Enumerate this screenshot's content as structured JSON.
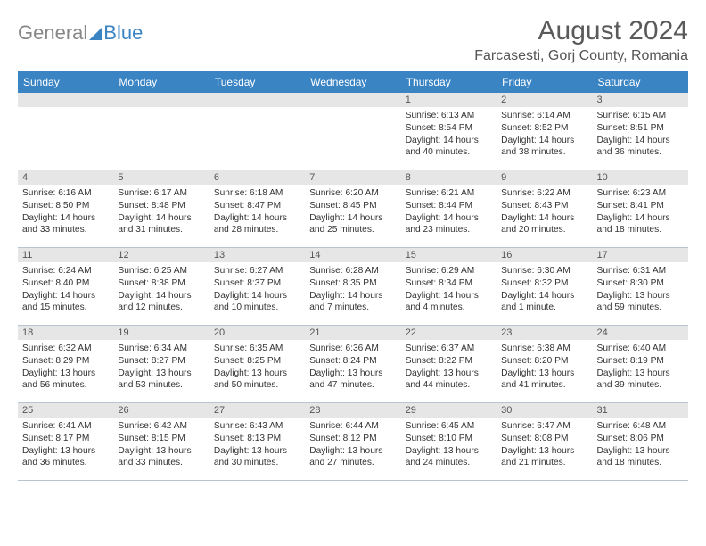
{
  "brand": {
    "part1": "General",
    "part2": "Blue"
  },
  "title": "August 2024",
  "location": "Farcasesti, Gorj County, Romania",
  "colors": {
    "header_bg": "#3a84c4",
    "header_text": "#ffffff",
    "daynum_bg": "#e6e6e6",
    "border": "#b8c4d0",
    "body_text": "#333333"
  },
  "dayNames": [
    "Sunday",
    "Monday",
    "Tuesday",
    "Wednesday",
    "Thursday",
    "Friday",
    "Saturday"
  ],
  "weeks": [
    [
      null,
      null,
      null,
      null,
      {
        "num": "1",
        "sunrise": "6:13 AM",
        "sunset": "8:54 PM",
        "daylight": "14 hours and 40 minutes."
      },
      {
        "num": "2",
        "sunrise": "6:14 AM",
        "sunset": "8:52 PM",
        "daylight": "14 hours and 38 minutes."
      },
      {
        "num": "3",
        "sunrise": "6:15 AM",
        "sunset": "8:51 PM",
        "daylight": "14 hours and 36 minutes."
      }
    ],
    [
      {
        "num": "4",
        "sunrise": "6:16 AM",
        "sunset": "8:50 PM",
        "daylight": "14 hours and 33 minutes."
      },
      {
        "num": "5",
        "sunrise": "6:17 AM",
        "sunset": "8:48 PM",
        "daylight": "14 hours and 31 minutes."
      },
      {
        "num": "6",
        "sunrise": "6:18 AM",
        "sunset": "8:47 PM",
        "daylight": "14 hours and 28 minutes."
      },
      {
        "num": "7",
        "sunrise": "6:20 AM",
        "sunset": "8:45 PM",
        "daylight": "14 hours and 25 minutes."
      },
      {
        "num": "8",
        "sunrise": "6:21 AM",
        "sunset": "8:44 PM",
        "daylight": "14 hours and 23 minutes."
      },
      {
        "num": "9",
        "sunrise": "6:22 AM",
        "sunset": "8:43 PM",
        "daylight": "14 hours and 20 minutes."
      },
      {
        "num": "10",
        "sunrise": "6:23 AM",
        "sunset": "8:41 PM",
        "daylight": "14 hours and 18 minutes."
      }
    ],
    [
      {
        "num": "11",
        "sunrise": "6:24 AM",
        "sunset": "8:40 PM",
        "daylight": "14 hours and 15 minutes."
      },
      {
        "num": "12",
        "sunrise": "6:25 AM",
        "sunset": "8:38 PM",
        "daylight": "14 hours and 12 minutes."
      },
      {
        "num": "13",
        "sunrise": "6:27 AM",
        "sunset": "8:37 PM",
        "daylight": "14 hours and 10 minutes."
      },
      {
        "num": "14",
        "sunrise": "6:28 AM",
        "sunset": "8:35 PM",
        "daylight": "14 hours and 7 minutes."
      },
      {
        "num": "15",
        "sunrise": "6:29 AM",
        "sunset": "8:34 PM",
        "daylight": "14 hours and 4 minutes."
      },
      {
        "num": "16",
        "sunrise": "6:30 AM",
        "sunset": "8:32 PM",
        "daylight": "14 hours and 1 minute."
      },
      {
        "num": "17",
        "sunrise": "6:31 AM",
        "sunset": "8:30 PM",
        "daylight": "13 hours and 59 minutes."
      }
    ],
    [
      {
        "num": "18",
        "sunrise": "6:32 AM",
        "sunset": "8:29 PM",
        "daylight": "13 hours and 56 minutes."
      },
      {
        "num": "19",
        "sunrise": "6:34 AM",
        "sunset": "8:27 PM",
        "daylight": "13 hours and 53 minutes."
      },
      {
        "num": "20",
        "sunrise": "6:35 AM",
        "sunset": "8:25 PM",
        "daylight": "13 hours and 50 minutes."
      },
      {
        "num": "21",
        "sunrise": "6:36 AM",
        "sunset": "8:24 PM",
        "daylight": "13 hours and 47 minutes."
      },
      {
        "num": "22",
        "sunrise": "6:37 AM",
        "sunset": "8:22 PM",
        "daylight": "13 hours and 44 minutes."
      },
      {
        "num": "23",
        "sunrise": "6:38 AM",
        "sunset": "8:20 PM",
        "daylight": "13 hours and 41 minutes."
      },
      {
        "num": "24",
        "sunrise": "6:40 AM",
        "sunset": "8:19 PM",
        "daylight": "13 hours and 39 minutes."
      }
    ],
    [
      {
        "num": "25",
        "sunrise": "6:41 AM",
        "sunset": "8:17 PM",
        "daylight": "13 hours and 36 minutes."
      },
      {
        "num": "26",
        "sunrise": "6:42 AM",
        "sunset": "8:15 PM",
        "daylight": "13 hours and 33 minutes."
      },
      {
        "num": "27",
        "sunrise": "6:43 AM",
        "sunset": "8:13 PM",
        "daylight": "13 hours and 30 minutes."
      },
      {
        "num": "28",
        "sunrise": "6:44 AM",
        "sunset": "8:12 PM",
        "daylight": "13 hours and 27 minutes."
      },
      {
        "num": "29",
        "sunrise": "6:45 AM",
        "sunset": "8:10 PM",
        "daylight": "13 hours and 24 minutes."
      },
      {
        "num": "30",
        "sunrise": "6:47 AM",
        "sunset": "8:08 PM",
        "daylight": "13 hours and 21 minutes."
      },
      {
        "num": "31",
        "sunrise": "6:48 AM",
        "sunset": "8:06 PM",
        "daylight": "13 hours and 18 minutes."
      }
    ]
  ],
  "labels": {
    "sunrise": "Sunrise:",
    "sunset": "Sunset:",
    "daylight": "Daylight:"
  }
}
